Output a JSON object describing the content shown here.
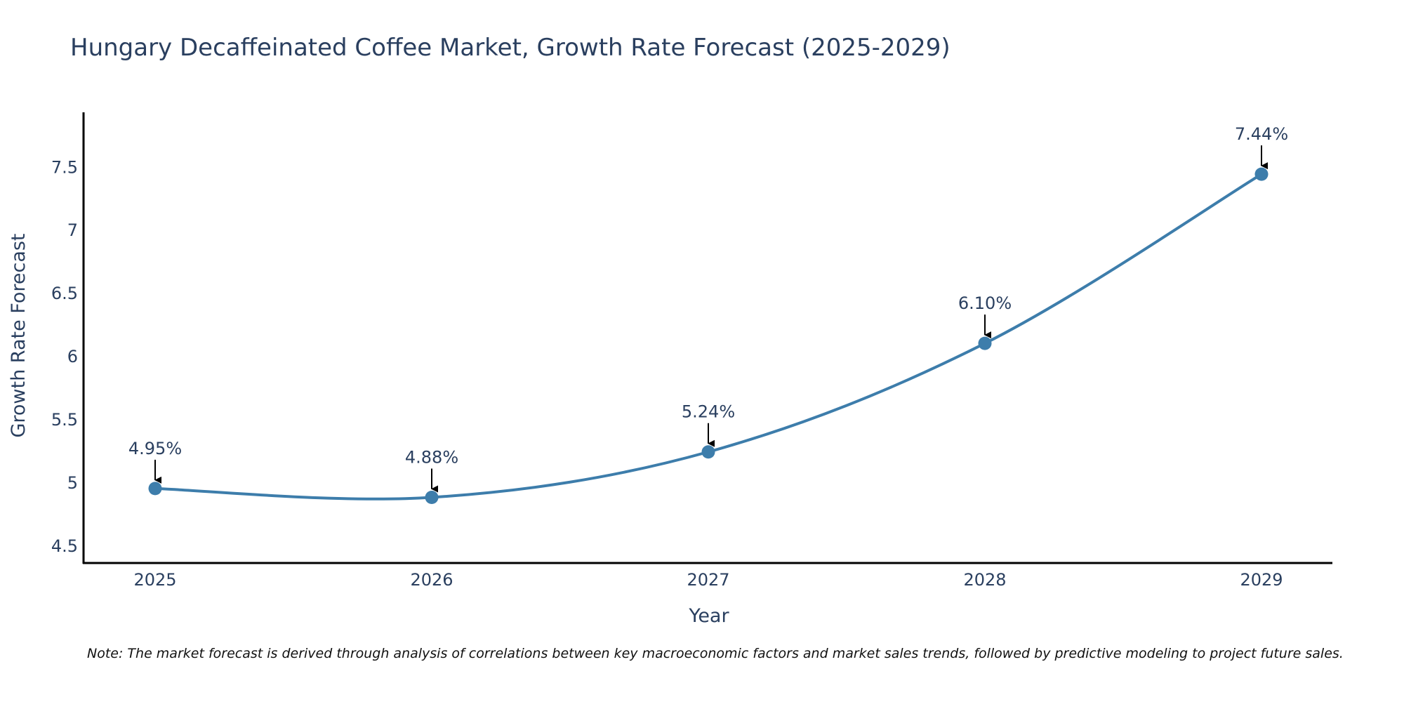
{
  "chart_data": {
    "type": "line",
    "title": "Hungary Decaffeinated Coffee Market, Growth Rate Forecast (2025-2029)",
    "xlabel": "Year",
    "ylabel": "Growth Rate Forecast",
    "categories": [
      "2025",
      "2026",
      "2027",
      "2028",
      "2029"
    ],
    "values": [
      4.95,
      4.88,
      5.24,
      6.1,
      7.44
    ],
    "data_labels": [
      "4.95%",
      "4.88%",
      "5.24%",
      "6.10%",
      "7.44%"
    ],
    "ylim": [
      4.36,
      7.93
    ],
    "yticks": [
      4.5,
      5,
      5.5,
      6,
      6.5,
      7,
      7.5
    ],
    "ytick_labels": [
      "4.5",
      "5",
      "5.5",
      "6",
      "6.5",
      "7",
      "7.5"
    ],
    "line_color": "#3d7dab",
    "marker_color": "#3d7dab",
    "grid": false,
    "legend": "none"
  },
  "note": "Note: The market forecast is derived through analysis of correlations between key macroeconomic factors and market sales trends, followed by predictive modeling to project future sales."
}
